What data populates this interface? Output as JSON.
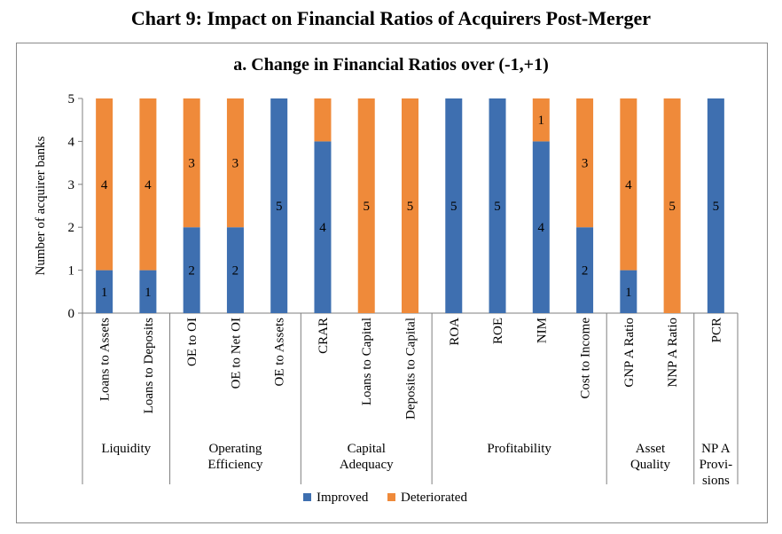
{
  "page_title": "Chart 9: Impact on Financial Ratios of  Acquirers Post-Merger",
  "colors": {
    "improved": "#3e6fb0",
    "deteriorated": "#ef8a3a",
    "frame": "#8a8a8a",
    "axis": "#7f7f7f"
  },
  "chart_data": {
    "type": "bar",
    "stacked": true,
    "title": "a. Change in Financial Ratios over (-1,+1)",
    "xlabel": "",
    "ylabel": "Number of acquirer banks",
    "ylim": [
      0,
      5
    ],
    "yticks": [
      "0",
      "1",
      "2",
      "3",
      "4",
      "5"
    ],
    "grid": false,
    "legend_position": "bottom",
    "categories": [
      "Loans to Assets",
      "Loans to Deposits",
      "OE to OI",
      "OE to Net OI",
      "OE to Assets",
      "CRAR",
      "Loans to Capital",
      "Deposits to Capital",
      "ROA",
      "ROE",
      "NIM",
      "Cost to Income",
      "GNP A Ratio",
      "NNP A Ratio",
      "PCR"
    ],
    "groups": [
      {
        "label_lines": [
          "Liquidity"
        ],
        "count": 2
      },
      {
        "label_lines": [
          "Operating",
          "Efficiency"
        ],
        "count": 3
      },
      {
        "label_lines": [
          "Capital",
          "Adequacy"
        ],
        "count": 3
      },
      {
        "label_lines": [
          "Profitability"
        ],
        "count": 4
      },
      {
        "label_lines": [
          "Asset",
          "Quality"
        ],
        "count": 2
      },
      {
        "label_lines": [
          "NP A",
          "Provi-",
          "sions"
        ],
        "count": 1
      }
    ],
    "series": [
      {
        "name": "Improved",
        "color": "#3e6fb0",
        "values": [
          1,
          1,
          2,
          2,
          5,
          4,
          0,
          0,
          5,
          5,
          4,
          2,
          1,
          0,
          5
        ],
        "labels": [
          "1",
          "1",
          "2",
          "2",
          "5",
          "4",
          "",
          "",
          "5",
          "5",
          "4",
          "2",
          "1",
          "",
          "5"
        ]
      },
      {
        "name": "Deteriorated",
        "color": "#ef8a3a",
        "values": [
          4,
          4,
          3,
          3,
          0,
          1,
          5,
          5,
          0,
          0,
          1,
          3,
          4,
          5,
          0
        ],
        "labels": [
          "4",
          "4",
          "3",
          "3",
          "",
          "",
          "5",
          "5",
          "",
          "",
          "1",
          "3",
          "4",
          "5",
          ""
        ]
      }
    ]
  }
}
